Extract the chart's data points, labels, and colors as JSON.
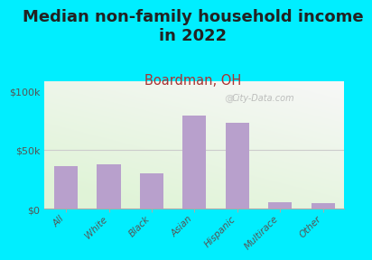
{
  "title": "Median non-family household income\nin 2022",
  "subtitle": "Boardman, OH",
  "categories": [
    "All",
    "White",
    "Black",
    "Asian",
    "Hispanic",
    "Multirace",
    "Other"
  ],
  "values": [
    36000,
    38000,
    30000,
    79000,
    73000,
    5500,
    5000
  ],
  "bar_color": "#b8a0cc",
  "background_color": "#00eeff",
  "yticks": [
    0,
    50000,
    100000
  ],
  "ytick_labels": [
    "$0",
    "$50k",
    "$100k"
  ],
  "ylim": [
    0,
    108000
  ],
  "title_fontsize": 13,
  "subtitle_fontsize": 10.5,
  "subtitle_color": "#aa3333",
  "tick_color": "#555555",
  "watermark": "City-Data.com"
}
